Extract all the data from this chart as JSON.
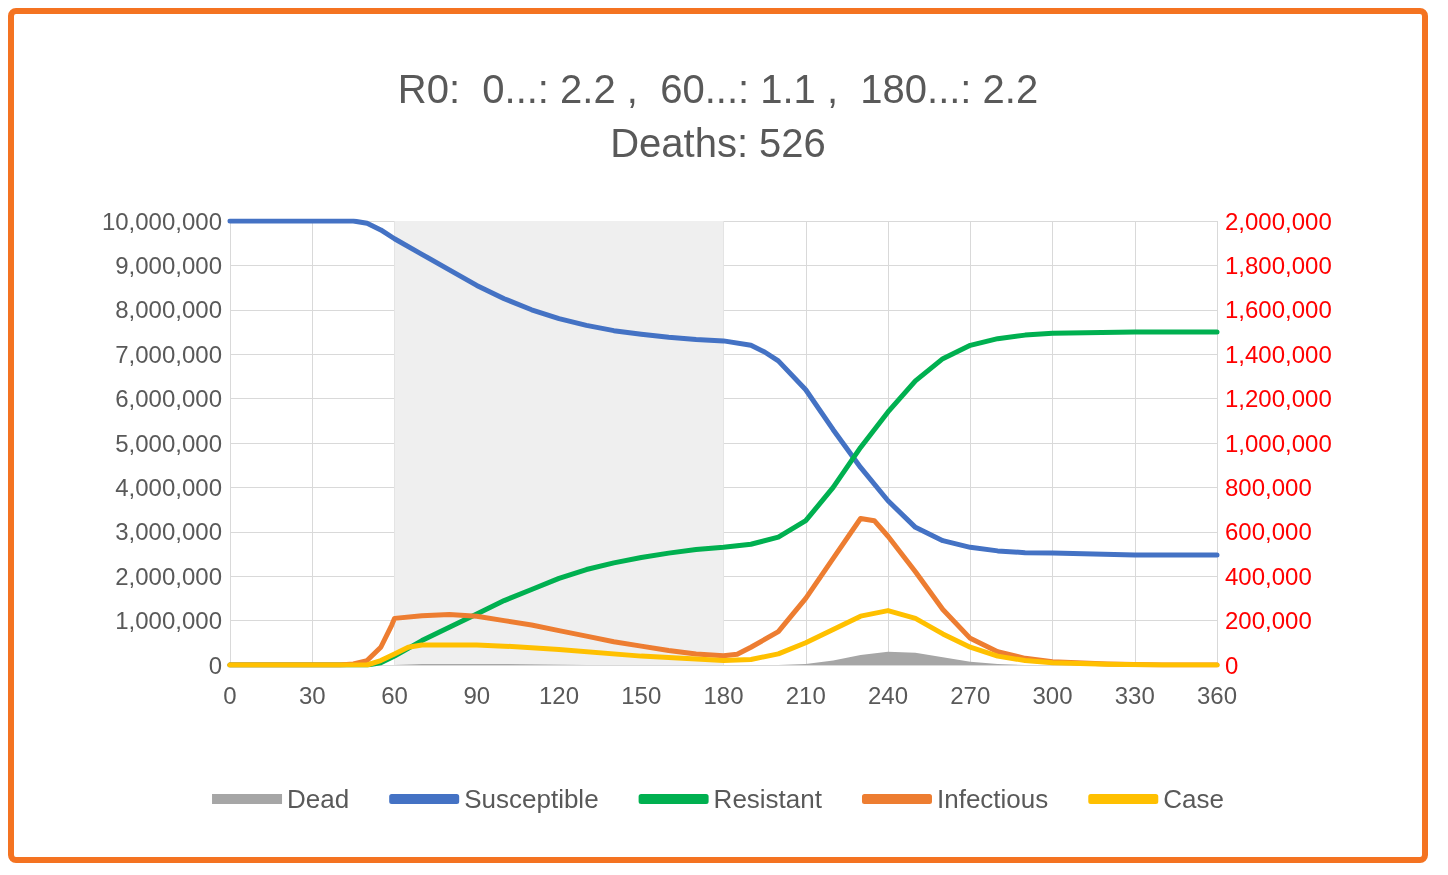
{
  "chart_data": {
    "type": "line",
    "title": "R0:  0...: 2.2 ,  60...: 1.1 ,  180...: 2.2",
    "subtitle": "Deaths: 526",
    "xlim": [
      0,
      360
    ],
    "xticks": [
      0,
      30,
      60,
      90,
      120,
      150,
      180,
      210,
      240,
      270,
      300,
      330,
      360
    ],
    "ylim": [
      0,
      10000000
    ],
    "yticks": [
      0,
      {
        "value": 1000000,
        "label": "1,000,000"
      },
      {
        "value": 2000000,
        "label": "2,000,000"
      },
      {
        "value": 3000000,
        "label": "3,000,000"
      },
      {
        "value": 4000000,
        "label": "4,000,000"
      },
      {
        "value": 5000000,
        "label": "5,000,000"
      },
      {
        "value": 6000000,
        "label": "6,000,000"
      },
      {
        "value": 7000000,
        "label": "7,000,000"
      },
      {
        "value": 8000000,
        "label": "8,000,000"
      },
      {
        "value": 9000000,
        "label": "9,000,000"
      },
      {
        "value": 10000000,
        "label": "10,000,000"
      }
    ],
    "y2lim": [
      0,
      2000000
    ],
    "y2ticks": [
      0,
      {
        "value": 200000,
        "label": "200,000"
      },
      {
        "value": 400000,
        "label": "400,000"
      },
      {
        "value": 600000,
        "label": "600,000"
      },
      {
        "value": 800000,
        "label": "800,000"
      },
      {
        "value": 1000000,
        "label": "1,000,000"
      },
      {
        "value": 1200000,
        "label": "1,200,000"
      },
      {
        "value": 1400000,
        "label": "1,400,000"
      },
      {
        "value": 1600000,
        "label": "1,600,000"
      },
      {
        "value": 1800000,
        "label": "1,800,000"
      },
      {
        "value": 2000000,
        "label": "2,000,000"
      }
    ],
    "grid": true,
    "legend": "bottom",
    "marker": "none",
    "line_style": "solid",
    "bands": [
      {
        "axis": "x",
        "from": 60,
        "to": 180,
        "color": "#efefef"
      }
    ],
    "series": [
      {
        "name": "Dead",
        "type": "area",
        "axis": "y2",
        "color": "#a6a6a6",
        "x": [
          0,
          60,
          70,
          100,
          130,
          200,
          210,
          220,
          230,
          240,
          250,
          260,
          270,
          280,
          290,
          360
        ],
        "values": [
          0,
          0,
          5000,
          5000,
          0,
          0,
          5000,
          20000,
          45000,
          60000,
          55000,
          35000,
          15000,
          5000,
          0,
          0
        ]
      },
      {
        "name": "Susceptible",
        "color": "#4472c4",
        "x": [
          0,
          45,
          50,
          55,
          60,
          70,
          80,
          90,
          100,
          110,
          120,
          130,
          140,
          150,
          160,
          170,
          180,
          190,
          195,
          200,
          210,
          220,
          230,
          240,
          250,
          260,
          270,
          280,
          290,
          300,
          330,
          360
        ],
        "values": [
          10000000,
          10000000,
          9950000,
          9800000,
          9600000,
          9250000,
          8900000,
          8550000,
          8250000,
          8000000,
          7800000,
          7650000,
          7530000,
          7450000,
          7380000,
          7330000,
          7300000,
          7200000,
          7050000,
          6850000,
          6200000,
          5300000,
          4450000,
          3700000,
          3100000,
          2800000,
          2650000,
          2570000,
          2530000,
          2520000,
          2480000,
          2480000
        ]
      },
      {
        "name": "Resistant",
        "color": "#00b050",
        "x": [
          0,
          50,
          55,
          60,
          70,
          80,
          90,
          100,
          110,
          120,
          130,
          140,
          150,
          160,
          170,
          180,
          190,
          200,
          210,
          220,
          230,
          240,
          250,
          260,
          270,
          280,
          290,
          300,
          330,
          360
        ],
        "values": [
          0,
          0,
          50000,
          200000,
          550000,
          850000,
          1150000,
          1450000,
          1700000,
          1950000,
          2150000,
          2300000,
          2420000,
          2520000,
          2600000,
          2650000,
          2720000,
          2880000,
          3250000,
          4000000,
          4900000,
          5700000,
          6400000,
          6900000,
          7200000,
          7350000,
          7430000,
          7470000,
          7500000,
          7500000
        ]
      },
      {
        "name": "Infectious",
        "axis": "y2",
        "color": "#ed7d31",
        "x": [
          0,
          40,
          45,
          50,
          55,
          59,
          60,
          70,
          80,
          90,
          100,
          110,
          120,
          130,
          140,
          150,
          160,
          170,
          180,
          185,
          190,
          200,
          210,
          220,
          230,
          235,
          240,
          250,
          260,
          270,
          280,
          290,
          300,
          320,
          340,
          360
        ],
        "values": [
          0,
          0,
          5000,
          20000,
          80000,
          180000,
          210000,
          222000,
          228000,
          220000,
          200000,
          180000,
          155000,
          130000,
          105000,
          85000,
          65000,
          50000,
          42000,
          48000,
          80000,
          150000,
          300000,
          480000,
          660000,
          650000,
          580000,
          420000,
          250000,
          120000,
          60000,
          30000,
          15000,
          5000,
          0,
          0
        ]
      },
      {
        "name": "Case",
        "axis": "y2",
        "color": "#ffc000",
        "x": [
          0,
          50,
          55,
          60,
          65,
          70,
          90,
          100,
          120,
          150,
          180,
          190,
          200,
          210,
          220,
          230,
          240,
          250,
          260,
          270,
          280,
          290,
          300,
          320,
          340,
          360
        ],
        "values": [
          0,
          0,
          20000,
          50000,
          80000,
          90000,
          90000,
          85000,
          70000,
          40000,
          20000,
          25000,
          50000,
          100000,
          160000,
          220000,
          245000,
          210000,
          140000,
          80000,
          40000,
          20000,
          10000,
          3000,
          0,
          0
        ]
      }
    ]
  }
}
